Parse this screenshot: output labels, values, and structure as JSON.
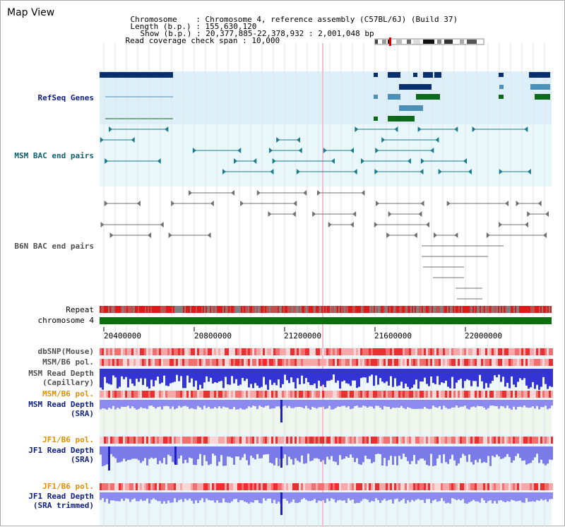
{
  "title": "Map View",
  "header": {
    "chromosome_key": "Chromosome",
    "chromosome_value": "Chromosome 4, reference assembly (C57BL/6J) (Build 37)",
    "length_key": "Length (b.p.)",
    "length_value": "155,630,120",
    "show_key": "Show (b.p.)",
    "show_value": "20,377,885-22,378,932 : 2,001,048 bp",
    "read_key": "Read coverage check span",
    "read_value": "10,000"
  },
  "tracks": {
    "refseq": "RefSeq Genes",
    "msm_bac": "MSM BAC end pairs",
    "b6n_bac": "B6N BAC end pairs",
    "repeat": "Repeat",
    "chromosome": "chromosome 4",
    "dbsnp": "dbSNP(Mouse)",
    "msm_b6_pol_1": "MSM/B6 pol.",
    "msm_read_cap_1": "MSM Read Depth",
    "msm_read_cap_2": "(Capillary)",
    "msm_b6_pol_2": "MSM/B6 pol.",
    "msm_read_sra_1": "MSM Read Depth",
    "msm_read_sra_2": "(SRA)",
    "jf1_b6_pol_1": "JF1/B6 pol.",
    "jf1_read_sra_1": "JF1 Read Depth",
    "jf1_read_sra_2": "(SRA)",
    "jf1_b6_pol_2": "JF1/B6 pol.",
    "jf1_read_trim_1": "JF1 Read Depth",
    "jf1_read_trim_2": "(SRA trimmed)"
  },
  "axis": {
    "ticks": [
      "20400000",
      "20800000",
      "21200000",
      "21600000",
      "22000000"
    ]
  },
  "colors": {
    "refseq_bg": "#ddf0fa",
    "msm_bg": "#e8f8fa",
    "gene_dark": "#0a2f6e",
    "gene_mid": "#4a90b8",
    "gene_green": "#0c6a1a",
    "bac_teal": "#1a7a90",
    "bac_gray": "#707070",
    "chrom_green": "#0c6e0c",
    "depth_blue": "#3a3ad8"
  }
}
